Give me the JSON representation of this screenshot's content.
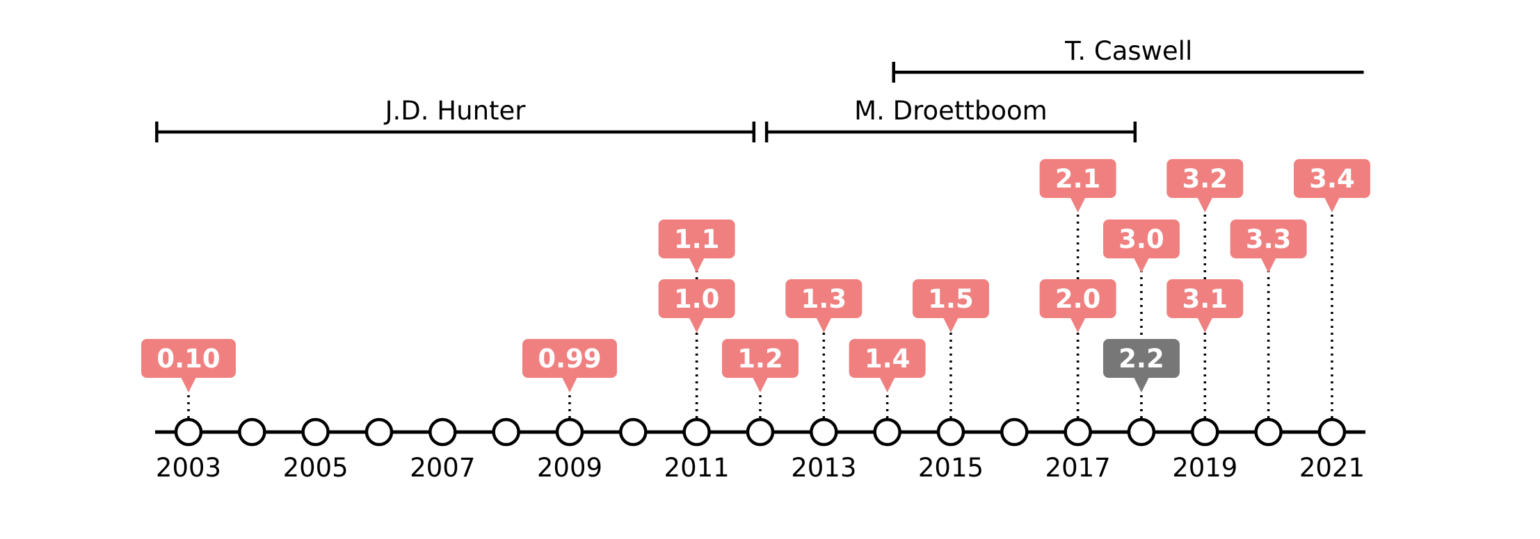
{
  "chart_data": {
    "type": "timeline",
    "xlim": [
      2002.0,
      2021.55
    ],
    "year_ticks": [
      2003,
      2005,
      2007,
      2009,
      2011,
      2013,
      2015,
      2017,
      2019,
      2021
    ],
    "tick_labels": [
      "2003",
      "2005",
      "2007",
      "2009",
      "2011",
      "2013",
      "2015",
      "2017",
      "2019",
      "2021"
    ],
    "circle_years": [
      2003,
      2004,
      2005,
      2006,
      2007,
      2008,
      2009,
      2010,
      2011,
      2012,
      2013,
      2014,
      2015,
      2016,
      2017,
      2018,
      2019,
      2020,
      2021
    ],
    "releases": [
      {
        "version": "0.10",
        "year": 2003,
        "level": 1,
        "highlight": false
      },
      {
        "version": "0.99",
        "year": 2009,
        "level": 1,
        "highlight": false
      },
      {
        "version": "1.0",
        "year": 2011,
        "level": 2,
        "highlight": false
      },
      {
        "version": "1.1",
        "year": 2011,
        "level": 3,
        "highlight": false
      },
      {
        "version": "1.2",
        "year": 2012,
        "level": 1,
        "highlight": false
      },
      {
        "version": "1.3",
        "year": 2013,
        "level": 2,
        "highlight": false
      },
      {
        "version": "1.4",
        "year": 2014,
        "level": 1,
        "highlight": false
      },
      {
        "version": "1.5",
        "year": 2015,
        "level": 2,
        "highlight": false
      },
      {
        "version": "2.0",
        "year": 2017,
        "level": 2,
        "highlight": false
      },
      {
        "version": "2.1",
        "year": 2017,
        "level": 4,
        "highlight": false
      },
      {
        "version": "2.2",
        "year": 2018,
        "level": 1,
        "highlight": true
      },
      {
        "version": "3.0",
        "year": 2018,
        "level": 3,
        "highlight": false
      },
      {
        "version": "3.1",
        "year": 2019,
        "level": 2,
        "highlight": false
      },
      {
        "version": "3.2",
        "year": 2019,
        "level": 4,
        "highlight": false
      },
      {
        "version": "3.3",
        "year": 2020,
        "level": 3,
        "highlight": false
      },
      {
        "version": "3.4",
        "year": 2021,
        "level": 4,
        "highlight": false
      }
    ],
    "leads": [
      {
        "name": "J.D. Hunter",
        "start": 2002.5,
        "end": 2011.9,
        "row": 1
      },
      {
        "name": "M. Droettboom",
        "start": 2012.1,
        "end": 2017.9,
        "row": 1
      },
      {
        "name": "T. Caswell",
        "start": 2014.1,
        "end": 2021.5,
        "row": 2
      }
    ],
    "colors": {
      "release": "#f08080",
      "highlight": "#777777",
      "line": "#000000",
      "label_text": "#ffffff"
    }
  }
}
